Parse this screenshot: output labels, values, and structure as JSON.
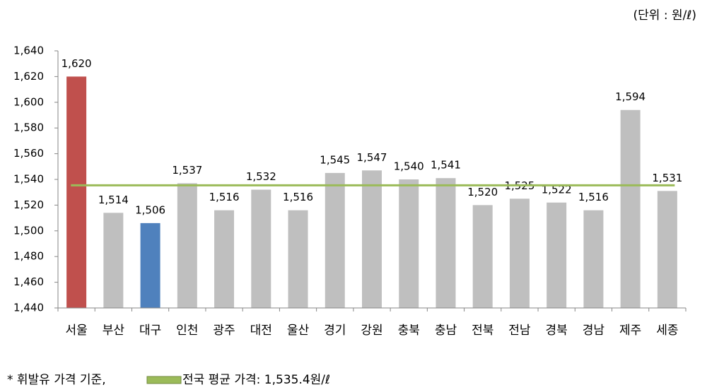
{
  "chart_data": {
    "type": "bar",
    "unit": "(단위 : 원/ℓ)",
    "categories": [
      "서울",
      "부산",
      "대구",
      "인천",
      "광주",
      "대전",
      "울산",
      "경기",
      "강원",
      "충북",
      "충남",
      "전북",
      "전남",
      "경북",
      "경남",
      "제주",
      "세종"
    ],
    "values": [
      1620,
      1514,
      1506,
      1537,
      1516,
      1532,
      1516,
      1545,
      1547,
      1540,
      1541,
      1520,
      1525,
      1522,
      1516,
      1594,
      1531
    ],
    "value_labels": [
      "1,620",
      "1,514",
      "1,506",
      "1,537",
      "1,516",
      "1,532",
      "1,516",
      "1,545",
      "1,547",
      "1,540",
      "1,541",
      "1,520",
      "1,525",
      "1,522",
      "1,516",
      "1,594",
      "1,531"
    ],
    "colors": [
      "#c0504d",
      "#bfbfbf",
      "#4f81bd",
      "#bfbfbf",
      "#bfbfbf",
      "#bfbfbf",
      "#bfbfbf",
      "#bfbfbf",
      "#bfbfbf",
      "#bfbfbf",
      "#bfbfbf",
      "#bfbfbf",
      "#bfbfbf",
      "#bfbfbf",
      "#bfbfbf",
      "#bfbfbf",
      "#bfbfbf"
    ],
    "ylim": [
      1440,
      1640
    ],
    "yticks": [
      {
        "value": 1440,
        "label": "1,440"
      },
      {
        "value": 1460,
        "label": "1,460"
      },
      {
        "value": 1480,
        "label": "1,480"
      },
      {
        "value": 1500,
        "label": "1,500"
      },
      {
        "value": 1520,
        "label": "1,520"
      },
      {
        "value": 1540,
        "label": "1,540"
      },
      {
        "value": 1560,
        "label": "1,560"
      },
      {
        "value": 1580,
        "label": "1,580"
      },
      {
        "value": 1600,
        "label": "1,600"
      },
      {
        "value": 1620,
        "label": "1,620"
      },
      {
        "value": 1640,
        "label": "1,640"
      }
    ],
    "reference_line": {
      "value": 1535.4,
      "label": "전국 평균 가격: 1,535.4원/ℓ",
      "color": "#9bbb59"
    },
    "note": "* 휘발유 가격 기준,"
  }
}
